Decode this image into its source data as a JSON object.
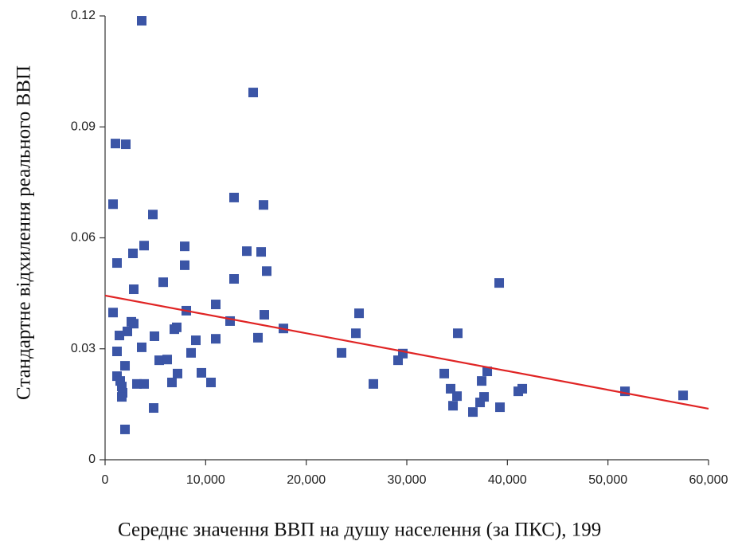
{
  "chart_data": {
    "type": "scatter",
    "x_label": "Середнє значення ВВП на душу населення (за ПКС), 199",
    "y_label": "Стандартне відхилення реального ВВП",
    "xlim": [
      0,
      60000
    ],
    "ylim": [
      0,
      0.12
    ],
    "xticks": [
      0,
      {
        "value": 10000,
        "label": "10,000"
      },
      {
        "value": 20000,
        "label": "20,000"
      },
      {
        "value": 30000,
        "label": "30,000"
      },
      {
        "value": 40000,
        "label": "40,000"
      },
      {
        "value": 50000,
        "label": "50,000"
      },
      {
        "value": 60000,
        "label": "60,000"
      }
    ],
    "yticks": [
      0,
      0.03,
      0.06,
      0.09,
      0.12
    ],
    "series": [
      {
        "color": "#3b55a6",
        "x": [
          3641,
          14724,
          1029,
          2058,
          792,
          12824,
          4750,
          15753,
          3879,
          7916,
          2771,
          14091,
          15516,
          1187,
          7916,
          16070,
          12824,
          5779,
          39184,
          2850,
          792,
          8075,
          11003,
          25252,
          15832,
          12428,
          2612,
          2850,
          17732,
          6887,
          7124,
          2216,
          1425,
          4908,
          24936,
          35068,
          15199,
          11003,
          9024,
          3641,
          1187,
          8549,
          23511,
          29606,
          5383,
          6175,
          29131,
          1979,
          9578,
          7204,
          33723,
          37998,
          1187,
          37444,
          1504,
          10528,
          6649,
          3166,
          3879,
          26677,
          1662,
          34356,
          41480,
          41084,
          51692,
          57471,
          1742,
          34989,
          37681,
          1662,
          37286,
          4829,
          34593,
          39263,
          36572,
          1979
        ],
        "values": [
          0.1187,
          0.0993,
          0.0855,
          0.0853,
          0.0691,
          0.0709,
          0.0663,
          0.0689,
          0.0579,
          0.0577,
          0.0558,
          0.0564,
          0.0562,
          0.0532,
          0.0526,
          0.051,
          0.0489,
          0.048,
          0.0478,
          0.0461,
          0.0398,
          0.0403,
          0.042,
          0.0396,
          0.0392,
          0.0375,
          0.0373,
          0.0368,
          0.0355,
          0.0353,
          0.0358,
          0.0347,
          0.0336,
          0.0334,
          0.0342,
          0.0342,
          0.033,
          0.0327,
          0.0323,
          0.0304,
          0.0293,
          0.0289,
          0.0289,
          0.0287,
          0.0269,
          0.0271,
          0.0269,
          0.0254,
          0.0235,
          0.0233,
          0.0233,
          0.0239,
          0.0226,
          0.0213,
          0.0213,
          0.0209,
          0.0209,
          0.0205,
          0.0205,
          0.0205,
          0.0198,
          0.0192,
          0.0192,
          0.0185,
          0.0185,
          0.0174,
          0.0181,
          0.0172,
          0.017,
          0.017,
          0.0155,
          0.014,
          0.0146,
          0.0142,
          0.0129,
          0.0082
        ]
      }
    ],
    "trendline": {
      "color": "#e02424",
      "x": [
        0,
        60000
      ],
      "values": [
        0.0444,
        0.0138
      ]
    }
  }
}
